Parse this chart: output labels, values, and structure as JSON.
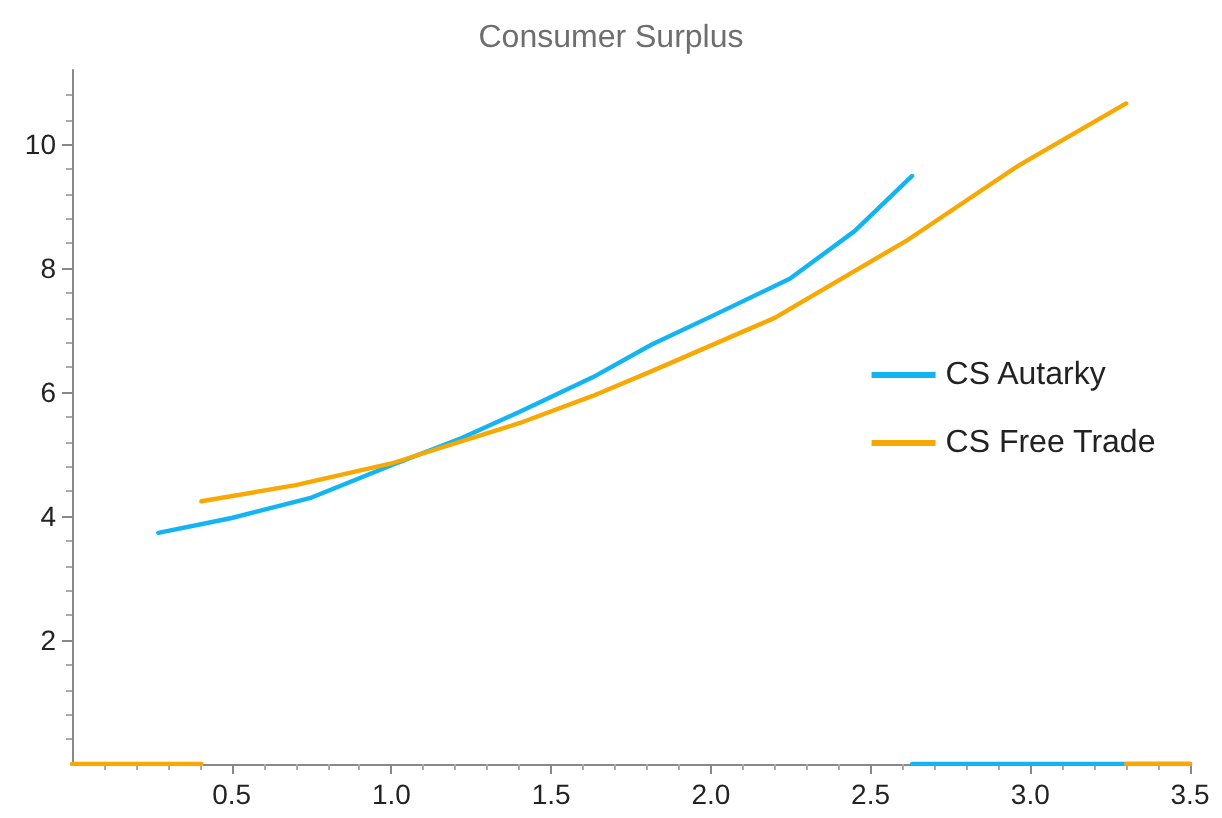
{
  "chart_data": {
    "type": "line",
    "title": "Consumer Surplus",
    "xlim": [
      0,
      3.5
    ],
    "xticks": [
      0.5,
      {
        "value": 1,
        "label": "1.0"
      },
      1.5,
      {
        "value": 2,
        "label": "2.0"
      },
      2.5,
      {
        "value": 3,
        "label": "3.0"
      },
      3.5
    ],
    "ylim": [
      0,
      11.2
    ],
    "yticks": [
      2,
      4,
      6,
      8,
      10
    ],
    "grid": false,
    "legend": "right",
    "marker": "none",
    "line_style": "solid",
    "series": [
      {
        "name": "CS Autarky",
        "color": "#12b4f2",
        "x": [
          0.27,
          0.5,
          0.75,
          1.0,
          1.22,
          1.4,
          1.63,
          1.815,
          2.0,
          2.247,
          2.45,
          2.63
        ],
        "values": [
          3.73,
          3.97,
          4.3,
          4.82,
          5.26,
          5.68,
          6.24,
          6.77,
          7.22,
          7.83,
          8.6,
          9.49
        ]
      },
      {
        "color": "#12b4f2",
        "x": [
          2.63,
          3.5
        ],
        "values": [
          0,
          0
        ]
      },
      {
        "name": "CS Free Trade",
        "color": "#f8a802",
        "x": [
          0.405,
          0.7,
          1.0,
          1.14,
          1.4,
          1.63,
          1.815,
          2.2,
          2.617,
          2.967,
          3.3
        ],
        "values": [
          4.24,
          4.5,
          4.85,
          5.08,
          5.5,
          5.94,
          6.34,
          7.2,
          8.46,
          9.67,
          10.66
        ]
      },
      {
        "color": "#f8a802",
        "x": [
          0,
          0.405
        ],
        "values": [
          0,
          0
        ]
      },
      {
        "color": "#f8a802",
        "x": [
          3.3,
          3.5
        ],
        "values": [
          0,
          0
        ]
      }
    ]
  }
}
